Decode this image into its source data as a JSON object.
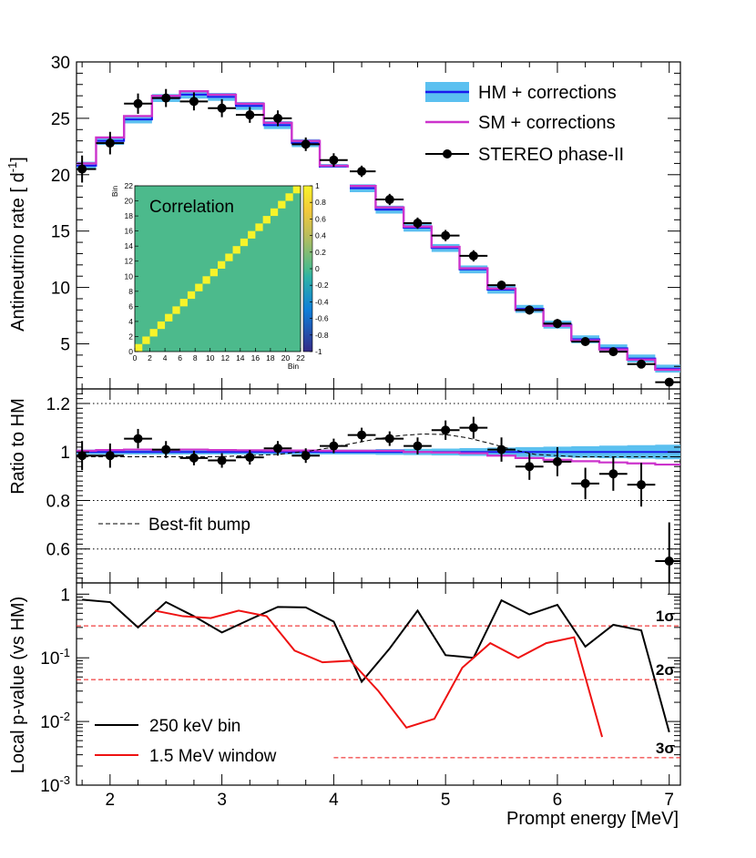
{
  "chart_data": [
    {
      "type": "line",
      "panel": "top",
      "ylabel": "Antineutrino rate [ d",
      "ylabel_sup": "-1",
      "ylabel_tail": "]",
      "ylim": [
        1,
        30
      ],
      "yticks": [
        "5",
        "10",
        "15",
        "20",
        "25",
        "30"
      ],
      "xlim": [
        1.7,
        7.1
      ],
      "bin_edges": [
        1.625,
        1.875,
        2.125,
        2.375,
        2.625,
        2.875,
        3.125,
        3.375,
        3.625,
        3.875,
        4.125,
        4.375,
        4.625,
        4.875,
        5.125,
        5.375,
        5.625,
        5.875,
        6.125,
        6.375,
        6.625,
        6.875,
        7.125
      ],
      "series": [
        {
          "name": "HM + corrections",
          "color": "#1a1aee",
          "band_color": "#5bc0f0",
          "values": [
            20.8,
            23.0,
            24.9,
            26.8,
            27.1,
            26.9,
            26.1,
            24.4,
            22.8,
            20.6,
            18.8,
            16.9,
            15.3,
            13.5,
            11.6,
            9.8,
            8.1,
            6.7,
            5.4,
            4.6,
            3.7,
            2.8
          ]
        },
        {
          "name": "SM + corrections",
          "color": "#cc33cc",
          "values": [
            21.0,
            23.3,
            25.2,
            27.0,
            27.4,
            27.1,
            26.3,
            24.6,
            23.0,
            20.8,
            19.0,
            17.1,
            15.4,
            13.6,
            11.7,
            9.9,
            8.0,
            6.6,
            5.3,
            4.5,
            3.6,
            2.7
          ]
        },
        {
          "name": "STEREO phase-II",
          "color": "#000000",
          "x": [
            1.75,
            2.0,
            2.25,
            2.5,
            2.75,
            3.0,
            3.25,
            3.5,
            3.75,
            4.0,
            4.25,
            4.5,
            4.75,
            5.0,
            5.25,
            5.5,
            5.75,
            6.0,
            6.25,
            6.5,
            6.75,
            7.0
          ],
          "values": [
            20.5,
            22.8,
            26.3,
            26.8,
            26.5,
            25.9,
            25.3,
            25.0,
            22.7,
            21.3,
            20.3,
            17.8,
            15.7,
            14.6,
            12.8,
            10.2,
            8.0,
            6.8,
            5.2,
            4.3,
            3.2,
            1.6
          ],
          "errors": [
            1.2,
            1.0,
            0.9,
            0.8,
            0.8,
            0.8,
            0.7,
            0.7,
            0.6,
            0.6,
            0.5,
            0.5,
            0.5,
            0.5,
            0.5,
            0.4,
            0.4,
            0.4,
            0.3,
            0.3,
            0.3,
            0.3
          ]
        }
      ],
      "legend": [
        "HM + corrections",
        "SM + corrections",
        "STEREO phase-II"
      ],
      "legend_position": "top-right",
      "inset": {
        "type": "heatmap",
        "title": "Correlation",
        "xlabel": "Bin",
        "ylabel": "Bin",
        "n_bins": 22,
        "xticks": [
          "0",
          "2",
          "4",
          "6",
          "8",
          "10",
          "12",
          "14",
          "16",
          "18",
          "20",
          "22"
        ],
        "colorbar_ticks": [
          "1",
          "0.8",
          "0.6",
          "0.4",
          "0.2",
          "0",
          "-0.2",
          "-0.4",
          "-0.6",
          "-0.8",
          "-1"
        ],
        "off_diagonal_value": 0,
        "diagonal_value": 1
      }
    },
    {
      "type": "line",
      "panel": "middle",
      "ylabel": "Ratio to HM",
      "ylim": [
        0.46,
        1.26
      ],
      "yticks": [
        "0.6",
        "0.8",
        "1",
        "1.2"
      ],
      "reference_lines": [
        0.6,
        0.8,
        1.2
      ],
      "legend": [
        "Best-fit bump"
      ],
      "legend_position": "bottom-left",
      "ratio_points": {
        "x": [
          1.75,
          2.0,
          2.25,
          2.5,
          2.75,
          3.0,
          3.25,
          3.5,
          3.75,
          4.0,
          4.25,
          4.5,
          4.75,
          5.0,
          5.25,
          5.5,
          5.75,
          6.0,
          6.25,
          6.5,
          6.75,
          7.0
        ],
        "values": [
          0.985,
          0.985,
          1.055,
          1.01,
          0.975,
          0.965,
          0.978,
          1.015,
          0.985,
          1.025,
          1.07,
          1.055,
          1.025,
          1.09,
          1.1,
          1.01,
          0.94,
          0.96,
          0.87,
          0.91,
          0.865,
          0.55
        ],
        "errors": [
          0.06,
          0.05,
          0.04,
          0.035,
          0.03,
          0.03,
          0.03,
          0.03,
          0.03,
          0.03,
          0.03,
          0.03,
          0.035,
          0.04,
          0.045,
          0.05,
          0.055,
          0.06,
          0.065,
          0.07,
          0.09,
          0.16
        ]
      },
      "hm_band_halfwidth": [
        0.01,
        0.01,
        0.01,
        0.01,
        0.01,
        0.01,
        0.01,
        0.01,
        0.01,
        0.01,
        0.01,
        0.012,
        0.013,
        0.014,
        0.016,
        0.018,
        0.02,
        0.022,
        0.024,
        0.026,
        0.028,
        0.03
      ],
      "sm_ratio": [
        1.005,
        1.008,
        1.01,
        1.008,
        1.01,
        1.008,
        1.007,
        1.006,
        1.006,
        1.005,
        1.005,
        1.005,
        1.0,
        0.998,
        0.995,
        0.985,
        0.975,
        0.968,
        0.962,
        0.957,
        0.953,
        0.948
      ],
      "bump": {
        "x": [
          1.7,
          2.5,
          3.0,
          3.5,
          3.8,
          4.0,
          4.2,
          4.4,
          4.6,
          4.8,
          5.0,
          5.2,
          5.4,
          5.6,
          5.8,
          6.2,
          7.1
        ],
        "values": [
          0.98,
          0.98,
          0.981,
          0.99,
          1.005,
          1.02,
          1.038,
          1.055,
          1.068,
          1.074,
          1.072,
          1.058,
          1.035,
          1.01,
          0.99,
          0.98,
          0.98
        ]
      }
    },
    {
      "type": "line",
      "panel": "bottom",
      "xlabel": "Prompt energy [MeV]",
      "ylabel": "Local p-value (vs HM)",
      "ylim": [
        0.001,
        1.5
      ],
      "yscale": "log",
      "xticks": [
        "2",
        "3",
        "4",
        "5",
        "6",
        "7"
      ],
      "yticks": [
        {
          "base": "10",
          "exp": "-3"
        },
        {
          "base": "10",
          "exp": "-2"
        },
        {
          "base": "10",
          "exp": "-1"
        },
        {
          "base": "1",
          "exp": ""
        }
      ],
      "sigma_lines": [
        {
          "label": "1σ",
          "value": 0.3173,
          "x_start": 1.7
        },
        {
          "label": "2σ",
          "value": 0.0455,
          "x_start": 1.7
        },
        {
          "label": "3σ",
          "value": 0.0027,
          "x_start": 4.0
        }
      ],
      "series": [
        {
          "name": "250 keV bin",
          "color": "#000000",
          "x": [
            1.75,
            2.0,
            2.25,
            2.5,
            2.75,
            3.0,
            3.25,
            3.5,
            3.75,
            4.0,
            4.25,
            4.5,
            4.75,
            5.0,
            5.25,
            5.5,
            5.75,
            6.0,
            6.25,
            6.5,
            6.75,
            7.0
          ],
          "values": [
            0.82,
            0.75,
            0.3,
            0.75,
            0.45,
            0.25,
            0.4,
            0.63,
            0.62,
            0.37,
            0.042,
            0.14,
            0.55,
            0.11,
            0.1,
            0.8,
            0.48,
            0.68,
            0.15,
            0.33,
            0.27,
            0.0068
          ]
        },
        {
          "name": "1.5 MeV window",
          "color": "#ee1111",
          "x": [
            2.4,
            2.65,
            2.9,
            3.15,
            3.4,
            3.65,
            3.9,
            4.15,
            4.4,
            4.65,
            4.9,
            5.15,
            5.4,
            5.65,
            5.9,
            6.15,
            6.4
          ],
          "values": [
            0.55,
            0.45,
            0.42,
            0.55,
            0.45,
            0.13,
            0.085,
            0.09,
            0.03,
            0.008,
            0.011,
            0.07,
            0.17,
            0.1,
            0.17,
            0.21,
            0.0057
          ]
        }
      ],
      "legend": [
        "250 keV bin",
        "1.5 MeV window"
      ],
      "legend_position": "bottom-left"
    }
  ]
}
